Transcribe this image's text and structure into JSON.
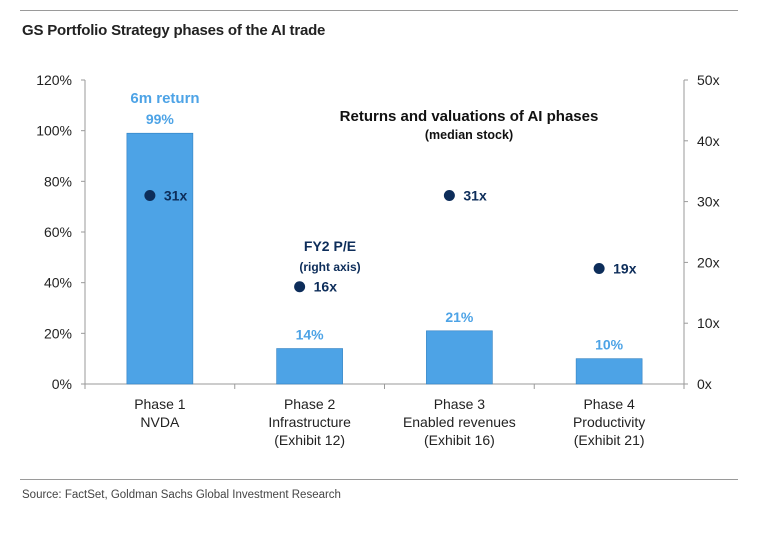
{
  "header": {
    "title": "GS Portfolio Strategy phases of the AI trade"
  },
  "footer": {
    "source": "Source: FactSet, Goldman Sachs Global Investment Research"
  },
  "colors": {
    "bar": "#4da3e6",
    "bar_label": "#4da3e6",
    "marker": "#0d2d5a",
    "text": "#222222"
  },
  "chart_data": {
    "type": "bar",
    "title": "Returns and valuations of AI phases",
    "subtitle": "(median stock)",
    "categories": [
      [
        "Phase 1",
        "NVDA"
      ],
      [
        "Phase 2",
        "Infrastructure",
        "(Exhibit 12)"
      ],
      [
        "Phase 3",
        "Enabled revenues",
        "(Exhibit 16)"
      ],
      [
        "Phase 4",
        "Productivity",
        "(Exhibit 21)"
      ]
    ],
    "series": [
      {
        "name": "6m return",
        "axis": "left",
        "values": [
          99,
          14,
          21,
          10
        ],
        "labels": [
          "99%",
          "14%",
          "21%",
          "10%"
        ]
      },
      {
        "name": "FY2 P/E",
        "name_note": "(right axis)",
        "axis": "right",
        "values": [
          31,
          16,
          31,
          19
        ],
        "labels": [
          "31x",
          "16x",
          "31x",
          "19x"
        ]
      }
    ],
    "left_axis": {
      "ylim": [
        0,
        120
      ],
      "ticks": [
        "0%",
        "20%",
        "40%",
        "60%",
        "80%",
        "100%",
        "120%"
      ]
    },
    "right_axis": {
      "ylim": [
        0,
        50
      ],
      "ticks": [
        "0x",
        "10x",
        "20x",
        "30x",
        "40x",
        "50x"
      ]
    },
    "grid": false
  }
}
